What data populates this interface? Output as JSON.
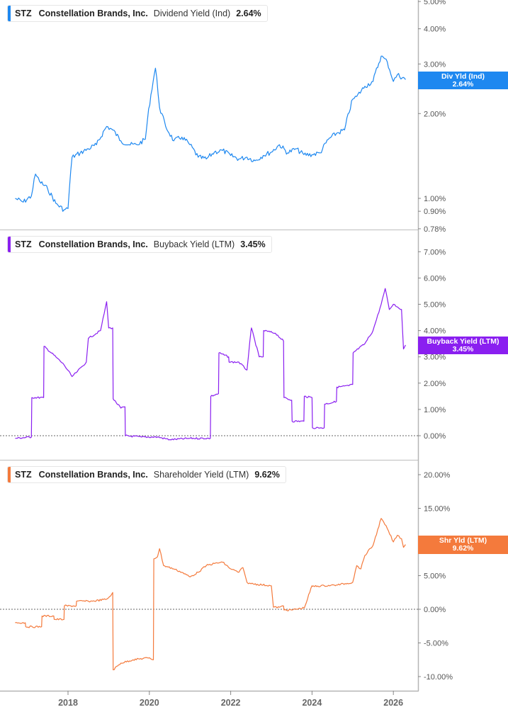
{
  "chart_data": [
    {
      "type": "line",
      "title": "STZ Constellation Brands, Inc. Dividend Yield (Ind) 2.64%",
      "ticker": "STZ",
      "company": "Constellation Brands, Inc.",
      "metric": "Dividend Yield (Ind)",
      "latest_value": "2.64%",
      "tag_label": "Div Yld (Ind)",
      "color": "#1e88f0",
      "yscale": "log",
      "ylim": [
        0.72,
        5.0
      ],
      "y_ticks": [
        "5.00%",
        "4.00%",
        "3.00%",
        "2.00%",
        "1.00%",
        "0.90%",
        "0.78%"
      ],
      "y_tick_values": [
        5.0,
        4.0,
        3.0,
        2.0,
        1.0,
        0.9,
        0.78
      ],
      "x": [
        2016.7,
        2016.9,
        2017.1,
        2017.2,
        2017.3,
        2017.5,
        2017.7,
        2017.9,
        2018.0,
        2018.1,
        2018.3,
        2018.5,
        2018.7,
        2018.95,
        2019.1,
        2019.3,
        2019.5,
        2019.7,
        2019.9,
        2020.15,
        2020.25,
        2020.4,
        2020.6,
        2020.8,
        2021.0,
        2021.2,
        2021.4,
        2021.6,
        2021.8,
        2022.0,
        2022.2,
        2022.4,
        2022.6,
        2022.8,
        2023.0,
        2023.2,
        2023.4,
        2023.6,
        2023.8,
        2024.0,
        2024.2,
        2024.4,
        2024.6,
        2024.8,
        2025.0,
        2025.1,
        2025.3,
        2025.5,
        2025.7,
        2025.85,
        2026.0,
        2026.1,
        2026.3
      ],
      "values": [
        1.0,
        0.97,
        1.02,
        1.22,
        1.15,
        1.08,
        0.96,
        0.91,
        0.92,
        1.4,
        1.45,
        1.5,
        1.55,
        1.8,
        1.75,
        1.6,
        1.55,
        1.55,
        1.62,
        2.9,
        2.1,
        1.8,
        1.6,
        1.65,
        1.55,
        1.4,
        1.38,
        1.46,
        1.48,
        1.42,
        1.38,
        1.4,
        1.36,
        1.42,
        1.46,
        1.55,
        1.45,
        1.5,
        1.43,
        1.43,
        1.45,
        1.62,
        1.7,
        1.75,
        2.25,
        2.3,
        2.5,
        2.6,
        3.2,
        3.05,
        2.6,
        2.75,
        2.64
      ],
      "xlabel": "",
      "ylabel": "",
      "grid": false
    },
    {
      "type": "line",
      "title": "STZ Constellation Brands, Inc. Buyback Yield (LTM) 3.45%",
      "ticker": "STZ",
      "company": "Constellation Brands, Inc.",
      "metric": "Buyback Yield (LTM)",
      "latest_value": "3.45%",
      "tag_label": "Buyback Yield (LTM)",
      "color": "#8a1ff0",
      "yscale": "linear",
      "ylim": [
        -0.8,
        7.5
      ],
      "y_ticks": [
        "7.00%",
        "6.00%",
        "5.00%",
        "4.00%",
        "3.00%",
        "2.00%",
        "1.00%",
        "0.00%"
      ],
      "y_tick_values": [
        7,
        6,
        5,
        4,
        3,
        2,
        1,
        0
      ],
      "zero_line": true,
      "x": [
        2016.7,
        2017.1,
        2017.11,
        2017.4,
        2017.41,
        2017.7,
        2017.9,
        2018.1,
        2018.2,
        2018.45,
        2018.5,
        2018.8,
        2018.95,
        2019.0,
        2019.1,
        2019.11,
        2019.3,
        2019.4,
        2019.41,
        2019.8,
        2020.2,
        2020.5,
        2020.51,
        2021.0,
        2021.5,
        2021.51,
        2021.7,
        2021.71,
        2021.95,
        2021.96,
        2022.2,
        2022.4,
        2022.5,
        2022.51,
        2022.7,
        2022.8,
        2022.81,
        2023.1,
        2023.3,
        2023.31,
        2023.5,
        2023.51,
        2023.8,
        2023.81,
        2024.0,
        2024.01,
        2024.2,
        2024.3,
        2024.31,
        2024.6,
        2024.61,
        2024.9,
        2025.0,
        2025.01,
        2025.3,
        2025.5,
        2025.7,
        2025.8,
        2025.9,
        2026.0,
        2026.1,
        2026.2,
        2026.25,
        2026.3
      ],
      "values": [
        -0.1,
        -0.05,
        1.45,
        1.45,
        3.4,
        3.0,
        2.7,
        2.25,
        2.4,
        2.8,
        3.7,
        4.0,
        5.1,
        4.1,
        4.1,
        1.4,
        1.05,
        1.1,
        0.0,
        -0.05,
        -0.05,
        -0.15,
        -0.15,
        -0.1,
        -0.1,
        1.5,
        1.6,
        3.15,
        3.0,
        2.8,
        2.8,
        2.5,
        4.0,
        4.1,
        3.0,
        3.0,
        4.0,
        3.9,
        3.6,
        1.45,
        1.35,
        0.55,
        0.55,
        1.5,
        1.45,
        0.3,
        0.3,
        0.3,
        1.2,
        1.3,
        1.85,
        1.9,
        1.95,
        3.15,
        3.5,
        4.0,
        5.0,
        5.6,
        4.8,
        5.0,
        4.9,
        4.8,
        3.3,
        3.45
      ],
      "xlabel": "",
      "ylabel": "",
      "grid": false
    },
    {
      "type": "line",
      "title": "STZ Constellation Brands, Inc. Shareholder Yield (LTM) 9.62%",
      "ticker": "STZ",
      "company": "Constellation Brands, Inc.",
      "metric": "Shareholder Yield (LTM)",
      "latest_value": "9.62%",
      "tag_label": "Shr Yld (LTM)",
      "color": "#f47a3c",
      "yscale": "linear",
      "ylim": [
        -11.5,
        21.5
      ],
      "y_ticks": [
        "20.00%",
        "15.00%",
        "10.00%",
        "5.00%",
        "0.00%",
        "-5.00%",
        "-10.00%"
      ],
      "y_tick_values": [
        20,
        15,
        10,
        5,
        0,
        -5,
        -10
      ],
      "zero_line": true,
      "x": [
        2016.7,
        2016.95,
        2016.96,
        2017.35,
        2017.36,
        2017.65,
        2017.66,
        2017.9,
        2017.91,
        2018.2,
        2018.21,
        2018.5,
        2018.6,
        2018.95,
        2019.05,
        2019.1,
        2019.11,
        2019.3,
        2019.6,
        2020.0,
        2020.1,
        2020.11,
        2020.2,
        2020.25,
        2020.35,
        2020.6,
        2020.8,
        2021.0,
        2021.2,
        2021.4,
        2021.6,
        2021.8,
        2022.0,
        2022.2,
        2022.3,
        2022.4,
        2022.5,
        2023.0,
        2023.05,
        2023.2,
        2023.3,
        2023.31,
        2023.5,
        2023.8,
        2023.81,
        2024.0,
        2024.01,
        2024.3,
        2024.6,
        2025.0,
        2025.1,
        2025.2,
        2025.3,
        2025.5,
        2025.7,
        2025.85,
        2026.0,
        2026.1,
        2026.2,
        2026.25,
        2026.3
      ],
      "values": [
        -2.0,
        -2.0,
        -2.6,
        -2.6,
        -1.0,
        -1.0,
        -1.5,
        -1.5,
        0.5,
        0.5,
        1.2,
        1.2,
        1.2,
        1.5,
        2.0,
        2.5,
        -9.0,
        -8.0,
        -7.5,
        -7.2,
        -7.5,
        7.5,
        7.8,
        9.0,
        6.5,
        6.0,
        5.5,
        4.8,
        5.5,
        6.5,
        6.8,
        7.0,
        6.0,
        5.5,
        6.2,
        4.0,
        3.8,
        3.5,
        0.3,
        0.3,
        0.5,
        -0.1,
        -0.1,
        0.2,
        0.2,
        3.5,
        3.4,
        3.5,
        3.6,
        4.0,
        6.5,
        6.0,
        8.0,
        9.5,
        13.5,
        12.0,
        10.0,
        11.0,
        10.5,
        9.2,
        9.62
      ],
      "xlabel": "",
      "ylabel": "",
      "grid": false
    }
  ],
  "x_axis": {
    "ticks": [
      "2018",
      "2020",
      "2022",
      "2024",
      "2026"
    ],
    "tick_values": [
      2018,
      2020,
      2022,
      2024,
      2026
    ]
  },
  "panels": [
    {
      "ticker": "STZ",
      "company": "Constellation Brands, Inc.",
      "metric": "Dividend Yield (Ind)",
      "value": "2.64%",
      "tag_label": "Div Yld (Ind)",
      "tag_value": "2.64%",
      "color": "#1e88f0"
    },
    {
      "ticker": "STZ",
      "company": "Constellation Brands, Inc.",
      "metric": "Buyback Yield (LTM)",
      "value": "3.45%",
      "tag_label": "Buyback Yield (LTM)",
      "tag_value": "3.45%",
      "color": "#8a1ff0"
    },
    {
      "ticker": "STZ",
      "company": "Constellation Brands, Inc.",
      "metric": "Shareholder Yield (LTM)",
      "value": "9.62%",
      "tag_label": "Shr Yld (LTM)",
      "tag_value": "9.62%",
      "color": "#f47a3c"
    }
  ]
}
